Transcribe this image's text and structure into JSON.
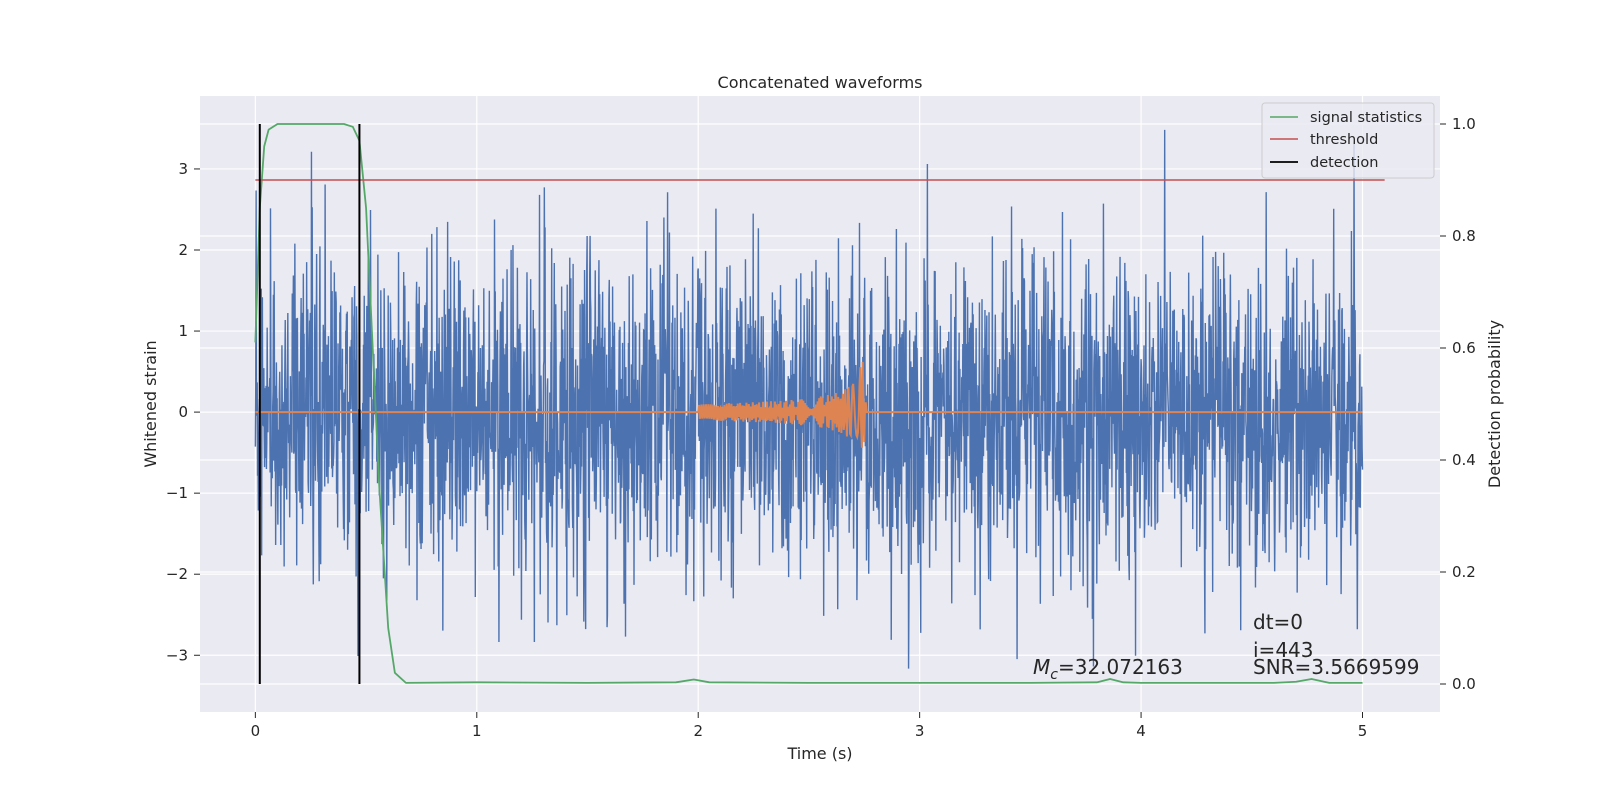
{
  "chart_data": {
    "type": "line",
    "title": "Concatenated waveforms",
    "xlabel": "Time (s)",
    "ylabel": "Whitened strain",
    "ylabel_right": "Detection probability",
    "xlim": [
      -0.25,
      5.35
    ],
    "ylim": [
      -3.7,
      3.9
    ],
    "ylim_right": [
      -0.05,
      1.05
    ],
    "xticks": [
      0,
      1,
      2,
      3,
      4,
      5
    ],
    "xtick_labels": [
      "0",
      "1",
      "2",
      "3",
      "4",
      "5"
    ],
    "yticks": [
      -3,
      -2,
      -1,
      0,
      1,
      2,
      3
    ],
    "ytick_labels": [
      "−3",
      "−2",
      "−1",
      "0",
      "1",
      "2",
      "3"
    ],
    "yticks_right": [
      0.0,
      0.2,
      0.4,
      0.6,
      0.8,
      1.0
    ],
    "ytick_right_labels": [
      "0.0",
      "0.2",
      "0.4",
      "0.6",
      "0.8",
      "1.0"
    ],
    "grid": true,
    "legend_position": "top-right",
    "legend": [
      {
        "label": "signal statistics",
        "color": "#55a868"
      },
      {
        "label": "threshold",
        "color": "#c44e52"
      },
      {
        "label": "detection",
        "color": "#000000"
      }
    ],
    "series": [
      {
        "key": "strain",
        "color": "#4c72b0",
        "x_range": [
          0,
          5
        ],
        "peak_envelope": 2.2,
        "max": 3.5,
        "min": -3.2,
        "axis": "left"
      },
      {
        "key": "template",
        "color": "#dd8452",
        "chirp_start": 2.0,
        "merger": 2.75,
        "amplitude_peak": 0.7,
        "axis": "left"
      },
      {
        "name": "signal statistics",
        "color": "#55a868",
        "axis": "right",
        "x": [
          0,
          0.02,
          0.04,
          0.06,
          0.1,
          0.2,
          0.4,
          0.44,
          0.47,
          0.5,
          0.53,
          0.56,
          0.6,
          0.63,
          0.68,
          1.0,
          1.5,
          1.9,
          1.98,
          2.05,
          2.5,
          3.0,
          3.5,
          3.8,
          3.86,
          3.92,
          4.0,
          4.6,
          4.7,
          4.77,
          4.85,
          5.0
        ],
        "values": [
          0.61,
          0.85,
          0.96,
          0.99,
          1.0,
          1.0,
          1.0,
          0.995,
          0.97,
          0.85,
          0.6,
          0.35,
          0.1,
          0.02,
          0.002,
          0.003,
          0.002,
          0.003,
          0.008,
          0.003,
          0.002,
          0.002,
          0.002,
          0.003,
          0.009,
          0.003,
          0.002,
          0.002,
          0.004,
          0.009,
          0.002,
          0.002
        ]
      },
      {
        "name": "threshold",
        "color": "#c44e52",
        "axis": "right",
        "x": [
          0,
          5.1
        ],
        "values": [
          0.9,
          0.9
        ]
      }
    ],
    "detections": [
      0.02,
      0.47
    ],
    "annotations": [
      {
        "text": "dt=0",
        "x": 4.5,
        "y": -2.65
      },
      {
        "text": "i=443",
        "x": 4.5,
        "y": -3.0
      },
      {
        "text": "SNR=3.5669599",
        "x": 4.5,
        "y": -3.2
      },
      {
        "text_symbol": "M",
        "text_subscript": "c",
        "text_value": "=32.072163",
        "x": 3.5,
        "y": -3.2
      }
    ],
    "colors": {
      "background": "#eaeaf2",
      "grid": "#ffffff"
    }
  }
}
